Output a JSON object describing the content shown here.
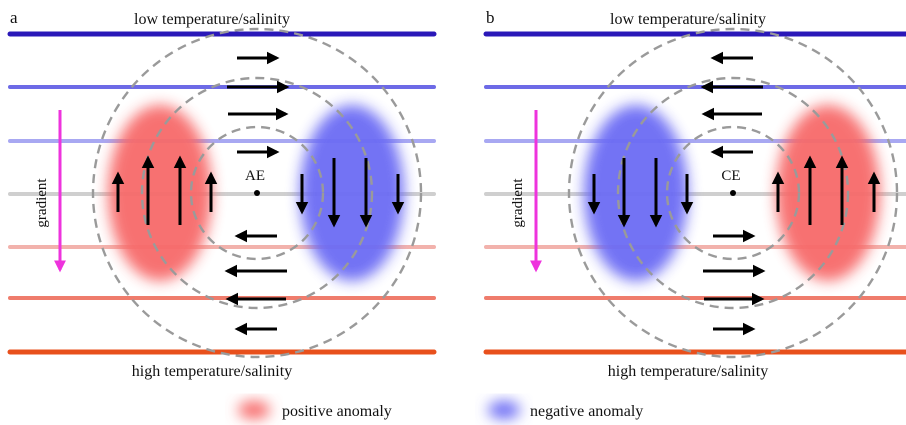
{
  "colors": {
    "positive": "#f76a6a",
    "negative": "#6c6cf4",
    "gradient_arrow": "#ee33dd",
    "circle": "#9a9a9a",
    "flow_arrow": "#000000",
    "layers": [
      "#2a18b8",
      "#6d6ae6",
      "#a8a8f2",
      "#cfcfcf",
      "#f2b2ac",
      "#ef7c6c",
      "#e8501c"
    ]
  },
  "panels": [
    {
      "letter": "a",
      "top_label": "low temperature/salinity",
      "bottom_label": "high temperature/salinity",
      "gradient_label": "gradient",
      "center_label": "AE",
      "left_anomaly": "positive",
      "right_anomaly": "negative",
      "flow": "anticyclonic"
    },
    {
      "letter": "b",
      "top_label": "low temperature/salinity",
      "bottom_label": "high temperature/salinity",
      "gradient_label": "gradient",
      "center_label": "CE",
      "left_anomaly": "negative",
      "right_anomaly": "positive",
      "flow": "cyclonic"
    }
  ],
  "legend": {
    "positive_label": "positive anomaly",
    "negative_label": "negative anomaly"
  }
}
